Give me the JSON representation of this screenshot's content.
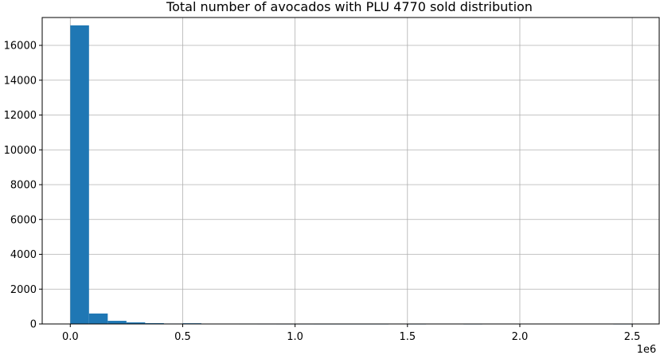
{
  "chart_data": {
    "type": "bar",
    "title": "Total number of avocados with PLU 4770 sold distribution",
    "xlabel": "",
    "ylabel": "",
    "x_offset_label": "1e6",
    "xlim": [
      -0.125,
      2.62
    ],
    "ylim": [
      0,
      17600
    ],
    "grid": true,
    "bar_color": "#1f77b4",
    "grid_color": "#b0b0b0",
    "x_ticks": [
      {
        "value": 0.0,
        "label": "0.0"
      },
      {
        "value": 0.5,
        "label": "0.5"
      },
      {
        "value": 1.0,
        "label": "1.0"
      },
      {
        "value": 1.5,
        "label": "1.5"
      },
      {
        "value": 2.0,
        "label": "2.0"
      },
      {
        "value": 2.5,
        "label": "2.5"
      }
    ],
    "y_ticks": [
      {
        "value": 0,
        "label": "0"
      },
      {
        "value": 2000,
        "label": "2000"
      },
      {
        "value": 4000,
        "label": "4000"
      },
      {
        "value": 6000,
        "label": "6000"
      },
      {
        "value": 8000,
        "label": "8000"
      },
      {
        "value": 10000,
        "label": "10000"
      },
      {
        "value": 12000,
        "label": "12000"
      },
      {
        "value": 14000,
        "label": "14000"
      },
      {
        "value": 16000,
        "label": "16000"
      }
    ],
    "bin_start": 0.0,
    "bin_width": 0.0833,
    "values": [
      17150,
      600,
      180,
      90,
      45,
      25,
      40,
      12,
      6,
      4,
      3,
      2,
      2,
      1,
      1,
      1,
      1,
      0,
      1,
      0,
      0,
      1,
      0,
      0,
      0,
      0,
      0,
      0,
      0,
      1
    ]
  }
}
